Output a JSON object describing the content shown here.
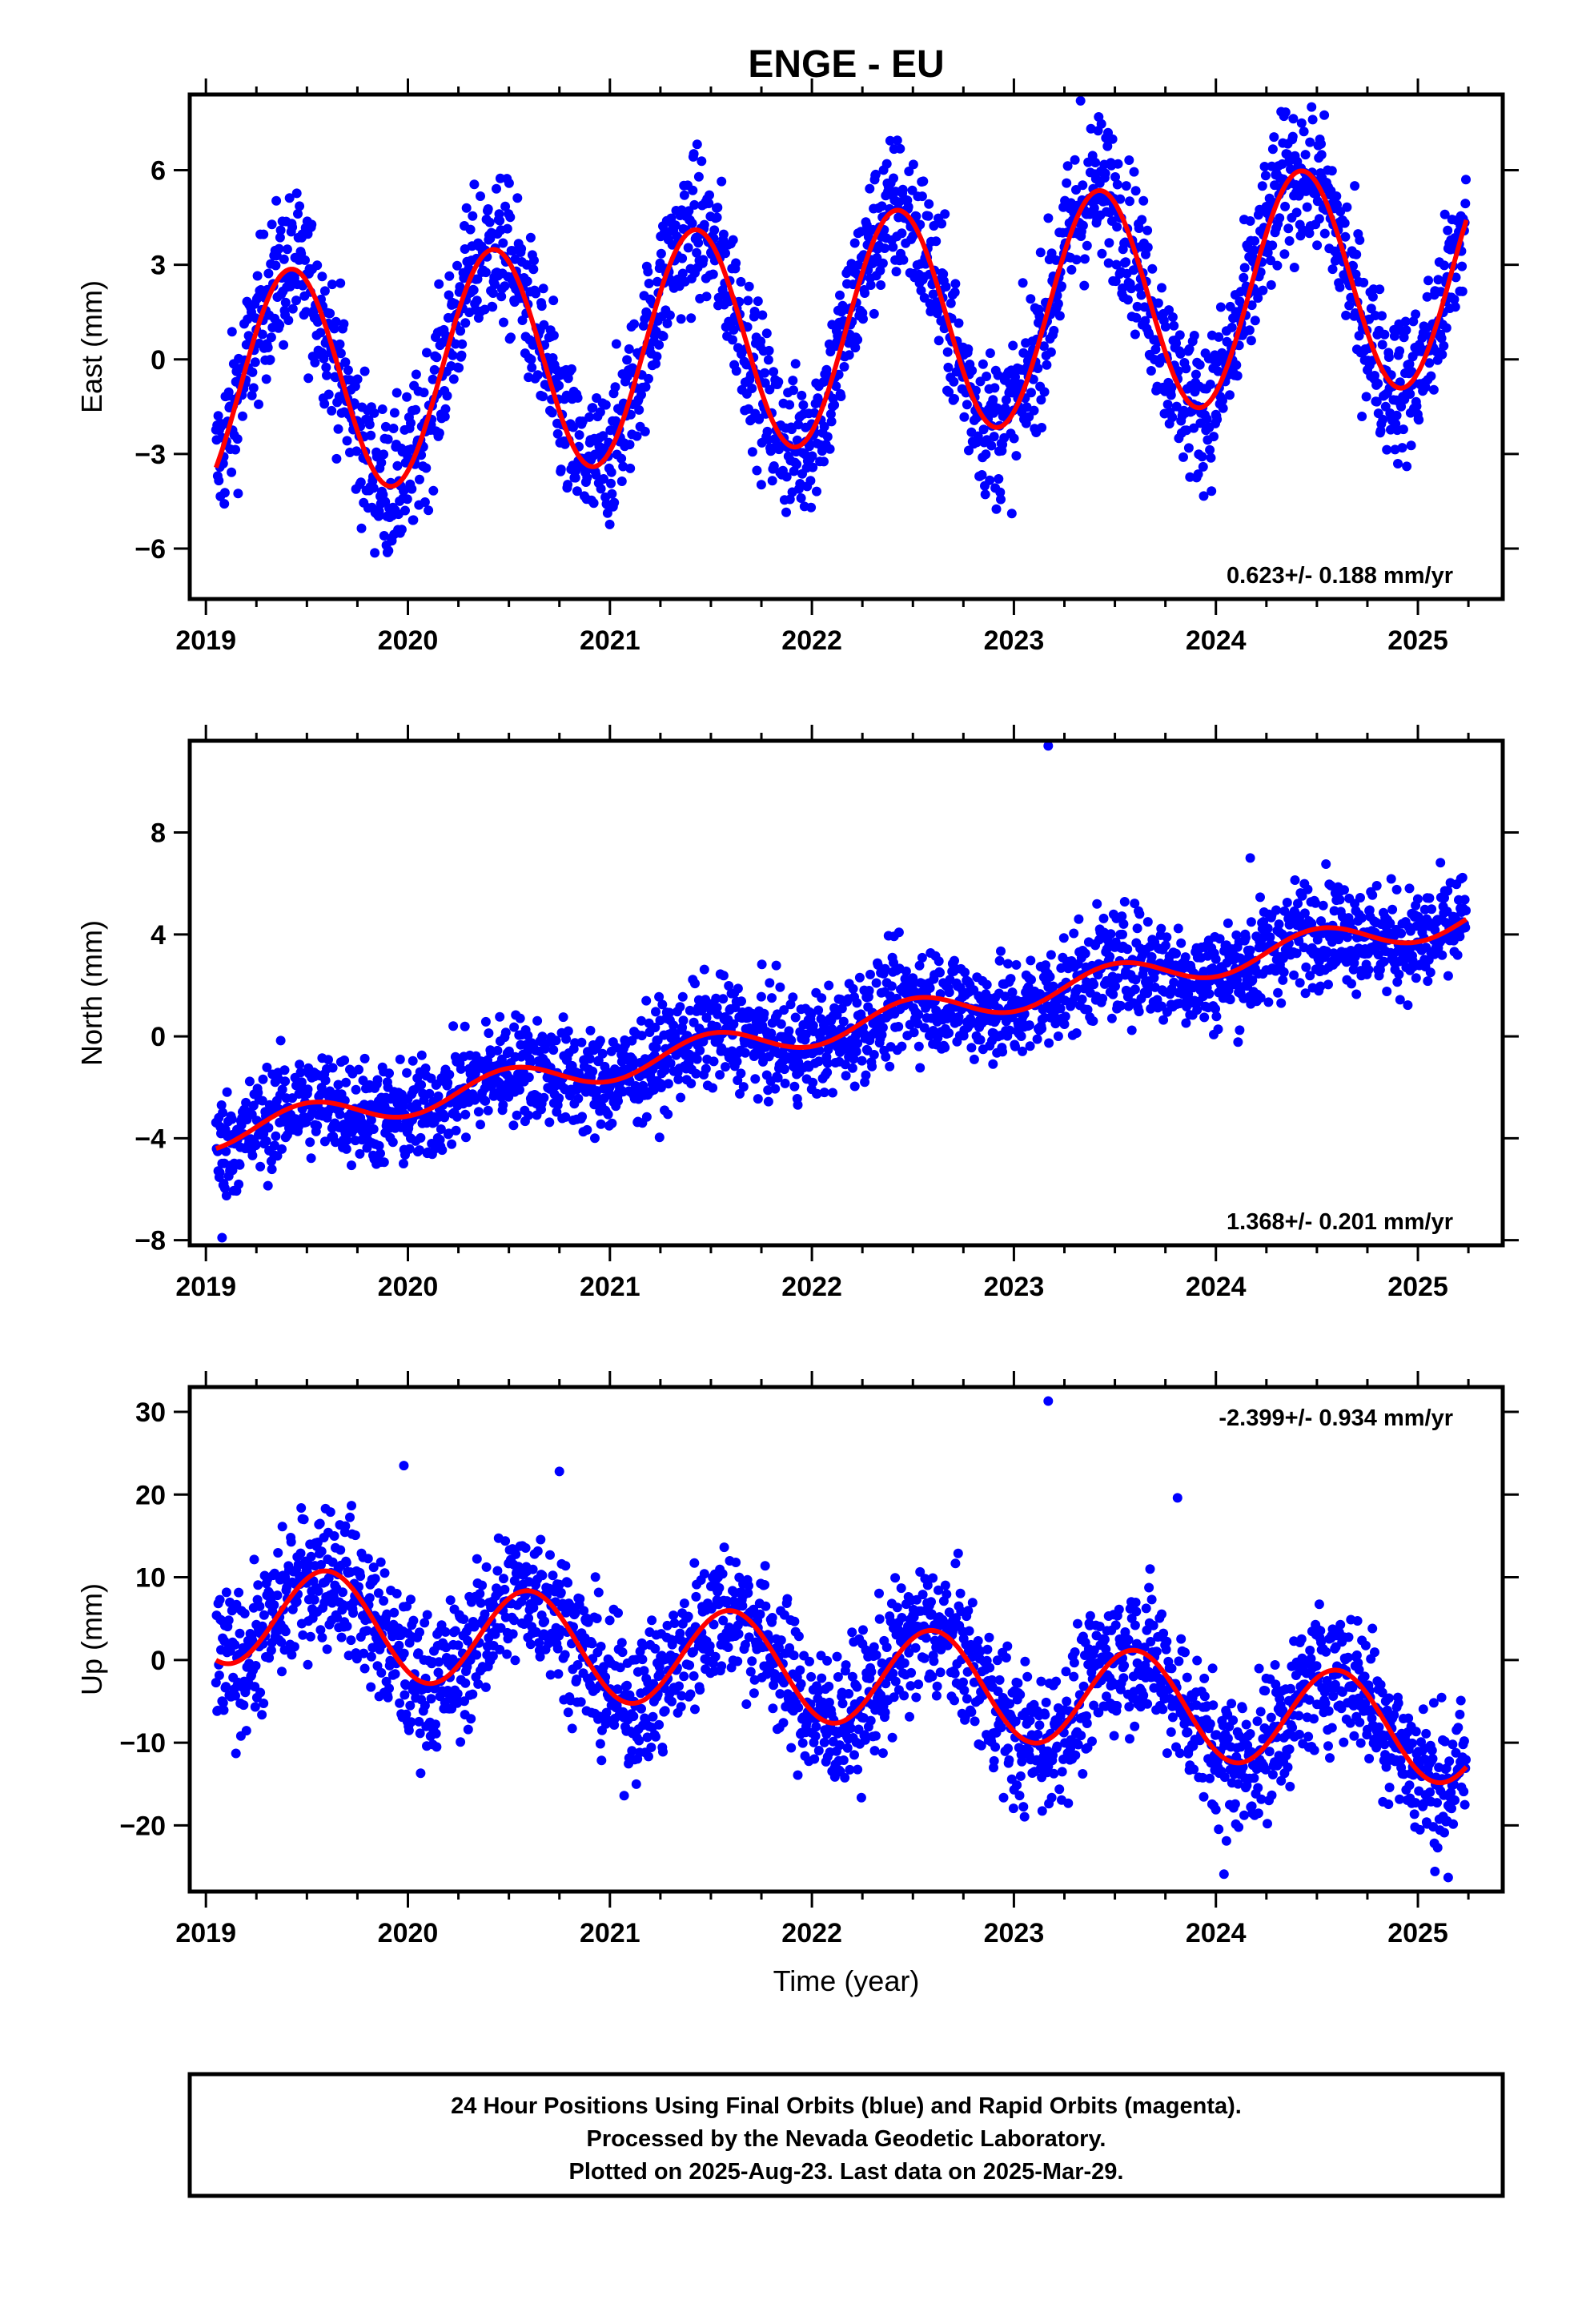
{
  "title": "ENGE - EU",
  "x_axis_label": "Time (year)",
  "colors": {
    "points": "#0000ff",
    "fit": "#ff0000",
    "frame": "#000000"
  },
  "footer": {
    "line1": "24 Hour Positions Using Final Orbits (blue) and Rapid Orbits (magenta).",
    "line2": "Processed by the Nevada Geodetic Laboratory.",
    "line3": "Plotted on 2025-Aug-23. Last data on 2025-Mar-29."
  },
  "chart_data": [
    {
      "type": "scatter",
      "component": "east",
      "ylabel": "East (mm)",
      "xlim": [
        2018.92,
        2025.42
      ],
      "ylim": [
        -7.6,
        8.4
      ],
      "x_ticks": [
        2019,
        2020,
        2021,
        2022,
        2023,
        2024,
        2025
      ],
      "x_tick_labels": [
        "2019",
        "2020",
        "2021",
        "2022",
        "2023",
        "2024",
        "2025"
      ],
      "y_ticks": [
        -6,
        -3,
        0,
        3,
        6
      ],
      "y_tick_labels": [
        "−6",
        "−3",
        "0",
        "3",
        "6"
      ],
      "rate_label": "0.623+/- 0.188 mm/yr",
      "rate_position": "bottom-right",
      "fit_model": {
        "t0": 2019.0,
        "offset": -1.0,
        "trend": 0.623,
        "amplitude": 3.6,
        "peak_phase": 0.42
      },
      "noise_sd": 1.2,
      "data_span": [
        2019.05,
        2025.24
      ],
      "outliers": [
        {
          "x": 2023.33,
          "y": 8.2
        }
      ],
      "series": [
        {
          "name": "24 Hour Positions Using Final Orbits (blue)",
          "kind": "points"
        },
        {
          "kind": "line",
          "x": [
            2019.05,
            2019.5,
            2020.0,
            2020.5,
            2021.0,
            2021.5,
            2022.0,
            2022.5,
            2023.0,
            2023.5,
            2024.0,
            2024.5,
            2025.0,
            2025.24
          ],
          "y": [
            -4.0,
            1.3,
            -4.5,
            2.3,
            -3.9,
            2.9,
            -3.3,
            3.5,
            -2.7,
            4.1,
            -2.0,
            4.8,
            -1.4,
            3.6
          ]
        }
      ]
    },
    {
      "type": "scatter",
      "component": "north",
      "ylabel": "North (mm)",
      "xlim": [
        2018.92,
        2025.42
      ],
      "ylim": [
        -8.2,
        11.6
      ],
      "x_ticks": [
        2019,
        2020,
        2021,
        2022,
        2023,
        2024,
        2025
      ],
      "x_tick_labels": [
        "2019",
        "2020",
        "2021",
        "2022",
        "2023",
        "2024",
        "2025"
      ],
      "y_ticks": [
        -8,
        -4,
        0,
        4,
        8
      ],
      "y_tick_labels": [
        "−8",
        "−4",
        "0",
        "4",
        "8"
      ],
      "rate_label": "1.368+/- 0.201 mm/yr",
      "rate_position": "bottom-right",
      "fit_model": {
        "t0": 2019.0,
        "offset": -3.9,
        "trend": 1.368,
        "amplitude": 0.6,
        "peak_phase": 0.5
      },
      "noise_sd": 1.05,
      "data_span": [
        2019.05,
        2025.24
      ],
      "outliers": [
        {
          "x": 2023.17,
          "y": 11.4
        },
        {
          "x": 2024.17,
          "y": 7.0
        },
        {
          "x": 2019.08,
          "y": -7.9
        }
      ],
      "series": [
        {
          "name": "24 Hour Positions Using Final Orbits (blue)",
          "kind": "points"
        },
        {
          "kind": "line",
          "x": [
            2019.05,
            2019.5,
            2020.0,
            2020.5,
            2021.0,
            2021.5,
            2022.0,
            2022.5,
            2023.0,
            2023.5,
            2024.0,
            2024.5,
            2025.0,
            2025.24
          ],
          "y": [
            -4.4,
            -2.9,
            -3.1,
            -1.6,
            -1.8,
            -0.2,
            -0.5,
            1.1,
            0.8,
            2.5,
            2.2,
            3.8,
            3.6,
            3.7
          ]
        }
      ]
    },
    {
      "type": "scatter",
      "component": "up",
      "ylabel": "Up (mm)",
      "xlim": [
        2018.92,
        2025.42
      ],
      "ylim": [
        -28,
        33
      ],
      "x_ticks": [
        2019,
        2020,
        2021,
        2022,
        2023,
        2024,
        2025
      ],
      "x_tick_labels": [
        "2019",
        "2020",
        "2021",
        "2022",
        "2023",
        "2024",
        "2025"
      ],
      "y_ticks": [
        -20,
        -10,
        0,
        10,
        20,
        30
      ],
      "y_tick_labels": [
        "−20",
        "−10",
        "0",
        "10",
        "20",
        "30"
      ],
      "rate_label": "-2.399+/- 0.934 mm/yr",
      "rate_position": "top-right",
      "fit_model": {
        "t0": 2019.0,
        "offset": 6.0,
        "trend": -2.399,
        "amplitude": 6.2,
        "peak_phase": 0.6
      },
      "noise_sd": 4.3,
      "data_span": [
        2019.05,
        2025.24
      ],
      "outliers": [
        {
          "x": 2023.17,
          "y": 31.3
        },
        {
          "x": 2019.98,
          "y": 23.5
        },
        {
          "x": 2020.75,
          "y": 22.8
        },
        {
          "x": 2023.81,
          "y": 19.6
        },
        {
          "x": 2024.04,
          "y": -25.9
        },
        {
          "x": 2025.15,
          "y": -26.3
        }
      ],
      "series": [
        {
          "name": "24 Hour Positions Using Final Orbits (blue)",
          "kind": "points"
        },
        {
          "kind": "line",
          "x": [
            2019.05,
            2019.6,
            2020.1,
            2020.6,
            2021.1,
            2021.6,
            2022.1,
            2022.6,
            2023.1,
            2023.6,
            2024.1,
            2024.6,
            2025.1,
            2025.24
          ],
          "y": [
            2.3,
            12.4,
            -0.4,
            10.1,
            -2.8,
            7.7,
            -5.2,
            5.3,
            -7.6,
            2.9,
            -10.0,
            0.5,
            -12.3,
            -12.0
          ]
        }
      ]
    }
  ]
}
